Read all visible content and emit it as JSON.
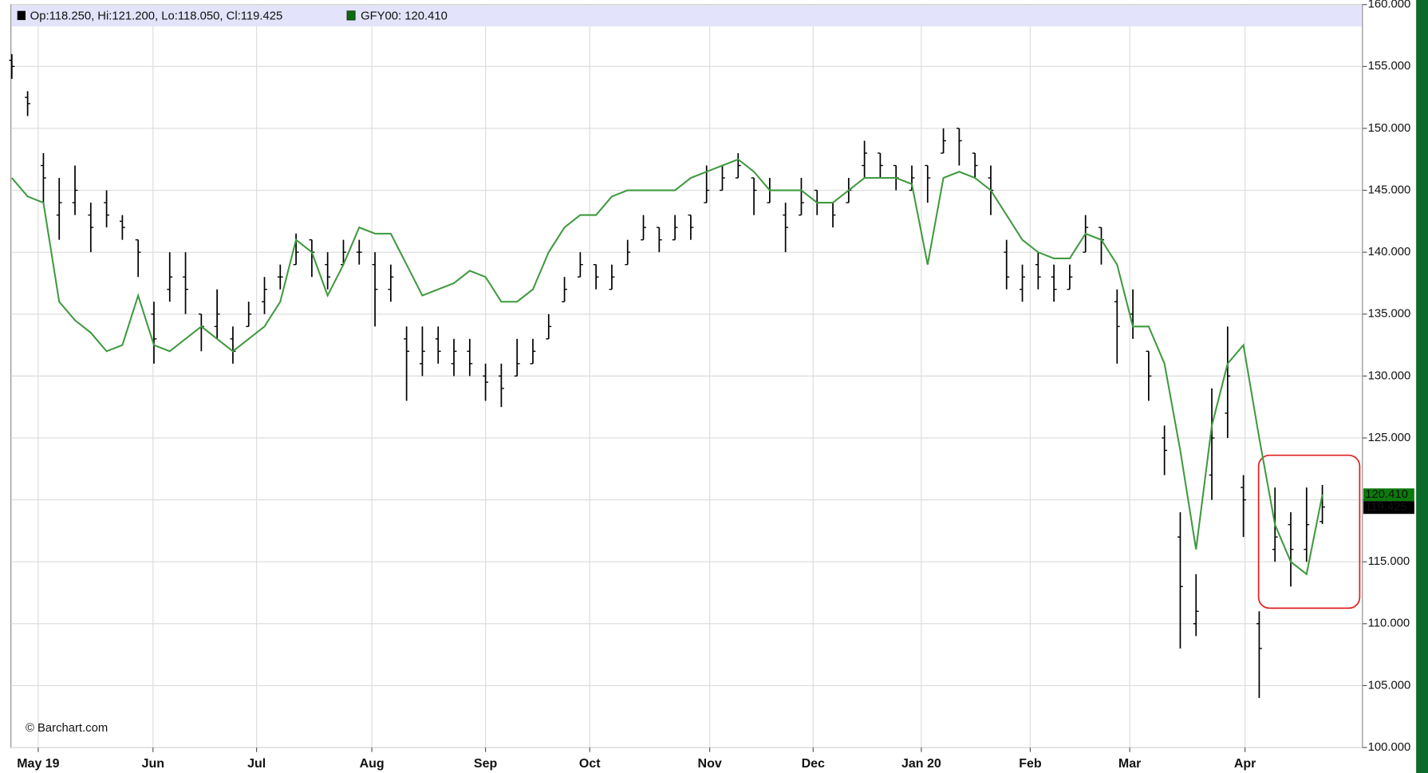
{
  "chart_data": {
    "type": "ohlc",
    "legend": [
      "Op:118.250, Hi:121.200, Lo:118.050, Cl:119.425",
      "GFY00: 120.410"
    ],
    "credit": "© Barchart.com",
    "categories": [
      null,
      null,
      null,
      null,
      null,
      null,
      null,
      null,
      null,
      null,
      null,
      null,
      null,
      null,
      null,
      null,
      null,
      null,
      null,
      null,
      null,
      null,
      null,
      null,
      null,
      null,
      null,
      null,
      null,
      null,
      null,
      null,
      null,
      null,
      null,
      null,
      null,
      null,
      null,
      null,
      null,
      null,
      null,
      null,
      null,
      null,
      null,
      null,
      null,
      null,
      null,
      null,
      null,
      null,
      null,
      null,
      null,
      null,
      null,
      null,
      null,
      null,
      null,
      null,
      null,
      null,
      null,
      null,
      null,
      null,
      null,
      null,
      null,
      null,
      null,
      null,
      null,
      null,
      null,
      null,
      null,
      null,
      null,
      null
    ],
    "xticks": [
      {
        "value": 1.67,
        "label": "May 19"
      },
      {
        "value": 8.94,
        "label": "Jun"
      },
      {
        "value": 15.5,
        "label": "Jul"
      },
      {
        "value": 22.8,
        "label": "Aug"
      },
      {
        "value": 30.0,
        "label": "Sep"
      },
      {
        "value": 36.6,
        "label": "Oct"
      },
      {
        "value": 44.2,
        "label": "Nov"
      },
      {
        "value": 50.75,
        "label": "Dec"
      },
      {
        "value": 57.6,
        "label": "Jan 20"
      },
      {
        "value": 64.5,
        "label": "Feb"
      },
      {
        "value": 70.8,
        "label": "Mar"
      },
      {
        "value": 78.1,
        "label": "Apr"
      }
    ],
    "ylim": [
      100,
      160
    ],
    "yticks": [
      {
        "value": 100,
        "label": "100.000"
      },
      {
        "value": 105,
        "label": "105.000"
      },
      {
        "value": 110,
        "label": "110.000"
      },
      {
        "value": 115,
        "label": "115.000"
      },
      {
        "value": 120,
        "label": "120.000"
      },
      {
        "value": 125,
        "label": "125.000"
      },
      {
        "value": 130,
        "label": "130.000"
      },
      {
        "value": 135,
        "label": "135.000"
      },
      {
        "value": 140,
        "label": "140.000"
      },
      {
        "value": 145,
        "label": "145.000"
      },
      {
        "value": 150,
        "label": "150.000"
      },
      {
        "value": 155,
        "label": "155.000"
      },
      {
        "value": 160,
        "label": "160.000"
      }
    ],
    "grid": true,
    "series": [
      {
        "color": "#000000",
        "last_label": "119.425",
        "open": [
          155.5,
          152.5,
          147,
          143,
          144,
          143,
          144,
          142.5,
          141,
          135,
          137,
          138,
          135,
          134,
          133,
          134,
          136,
          138,
          139,
          141,
          139,
          139,
          140,
          139,
          137,
          133,
          131,
          133,
          131,
          132,
          130,
          130,
          130,
          131,
          133,
          136,
          138,
          139,
          137,
          139,
          141,
          142,
          141,
          143,
          144,
          145,
          146,
          146,
          144,
          143,
          143,
          145,
          144,
          144,
          147,
          148,
          147,
          145,
          147,
          148,
          150,
          148,
          146,
          140,
          137,
          139,
          138,
          137,
          140,
          142,
          136,
          135,
          132,
          125,
          117,
          110,
          122,
          127,
          121,
          110,
          116,
          118,
          116,
          118.25
        ],
        "high": [
          156,
          153,
          148,
          146,
          147,
          144,
          145,
          143,
          141,
          136,
          140,
          140,
          135,
          137,
          134,
          136,
          138,
          139,
          141.5,
          141,
          140,
          141,
          141,
          140,
          139,
          134,
          134,
          134,
          133,
          133,
          131,
          131,
          133,
          133,
          135,
          138,
          140,
          139,
          139,
          141,
          143,
          142,
          143,
          143,
          147,
          147,
          148,
          146,
          146,
          144,
          146,
          145,
          144,
          146,
          149,
          148,
          147,
          147,
          147,
          150,
          150,
          148,
          147,
          141,
          139,
          140,
          139,
          139,
          143,
          142,
          137,
          137,
          132,
          126,
          119,
          114,
          129,
          134,
          122,
          111,
          121,
          119,
          121,
          121.2
        ],
        "low": [
          154,
          151,
          144,
          141,
          143,
          140,
          142,
          141,
          138,
          131,
          136,
          135,
          132,
          133,
          131,
          134,
          135,
          137,
          139,
          138,
          137,
          139,
          139,
          134,
          136,
          128,
          130,
          131,
          130,
          130,
          128,
          127.5,
          130,
          131,
          133,
          136,
          138,
          137,
          137,
          139,
          141,
          140,
          141,
          141,
          144,
          145,
          146,
          143,
          144,
          140,
          143,
          143,
          142,
          144,
          146,
          146,
          145,
          145,
          144,
          148,
          147,
          146,
          143,
          137,
          136,
          137,
          136,
          137,
          140,
          139,
          131,
          133,
          128,
          122,
          108,
          109,
          120,
          125,
          117,
          104,
          115,
          113,
          115,
          118.05
        ],
        "close": [
          155,
          152,
          146,
          144,
          145,
          142,
          143,
          142,
          140,
          133,
          138,
          137,
          134,
          135,
          132,
          135,
          137,
          138,
          140,
          140,
          138,
          140,
          140,
          137,
          138,
          132,
          132,
          132,
          132,
          131,
          129.5,
          129,
          131,
          132,
          134,
          137,
          139,
          138,
          138,
          140,
          142,
          141,
          142,
          142,
          145,
          146,
          147,
          145,
          145,
          142,
          144,
          144,
          143,
          145,
          148,
          147,
          146,
          146,
          146,
          149,
          149,
          147,
          145,
          138,
          138,
          138,
          137,
          138,
          142,
          141,
          134,
          134,
          130,
          124,
          113,
          111,
          125,
          130,
          120,
          108,
          117,
          116,
          118,
          119.425
        ]
      },
      {
        "name": "GFY00",
        "color": "#3f9a3f",
        "last_label": "120.410",
        "values": [
          146,
          144.5,
          144,
          136,
          134.5,
          133.5,
          132,
          132.5,
          136.5,
          132.5,
          132,
          133,
          134,
          133,
          132,
          133,
          134,
          136,
          141,
          140,
          136.5,
          139,
          142,
          141.5,
          141.5,
          139,
          136.5,
          137,
          137.5,
          138.5,
          138,
          136,
          136,
          137,
          140,
          142,
          143,
          143,
          144.5,
          145,
          145,
          145,
          145,
          146,
          146.5,
          147,
          147.5,
          146.5,
          145,
          145,
          145,
          144,
          144,
          145,
          146,
          146,
          146,
          145.5,
          139,
          146,
          146.5,
          146,
          145,
          143,
          141,
          140,
          139.5,
          139.5,
          141.5,
          141,
          139,
          134,
          134,
          131,
          124,
          116,
          126,
          131,
          132.5,
          125,
          118,
          115,
          114,
          120.41
        ]
      }
    ]
  }
}
